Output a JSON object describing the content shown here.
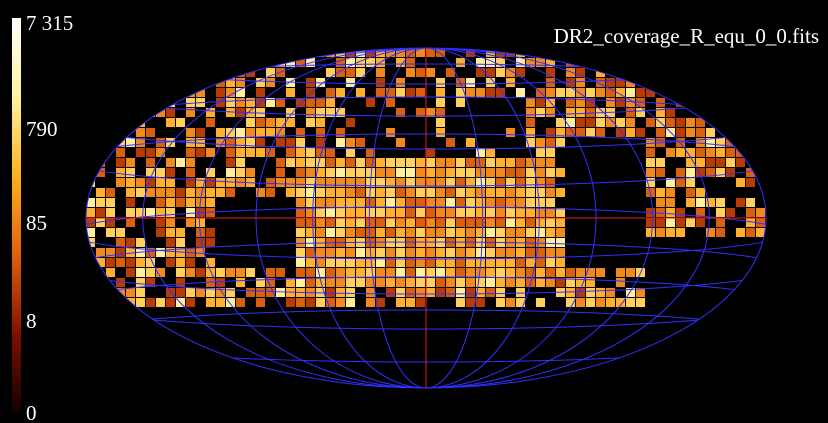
{
  "title": "DR2_coverage_R_equ_0_0.fits",
  "colorbar": {
    "labels": [
      "7 315",
      "790",
      "85",
      "8",
      "0"
    ]
  }
}
